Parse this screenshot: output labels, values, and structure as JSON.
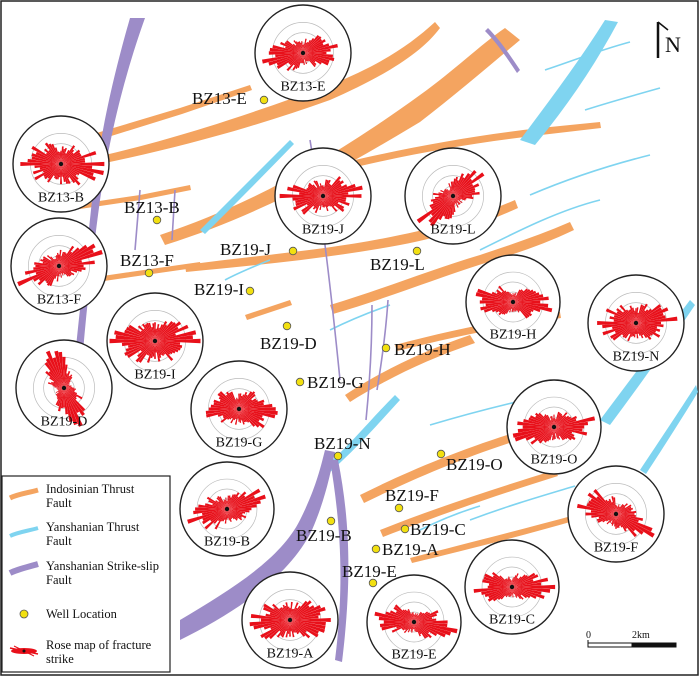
{
  "colors": {
    "indosinian": "#f4a460",
    "yanshanian_thrust": "#7fd4f0",
    "strike_slip": "#9d8cc8",
    "well": "#f2e010",
    "rose": "#e8101a",
    "frame": "#222222"
  },
  "north": {
    "label": "N",
    "icon": "north-arrow-icon"
  },
  "scale_bar": {
    "start": "0",
    "end": "2km"
  },
  "legend": [
    {
      "key": "indosinian",
      "lines": [
        "Indosinian Thrust",
        "Fault"
      ],
      "icon": "orange-fault-swatch-icon"
    },
    {
      "key": "yanshanian_thrust",
      "lines": [
        "Yanshanian Thrust",
        "Fault"
      ],
      "icon": "blue-fault-swatch-icon"
    },
    {
      "key": "strike_slip",
      "lines": [
        "Yanshanian Strike-slip",
        "Fault"
      ],
      "icon": "purple-fault-swatch-icon"
    },
    {
      "key": "well",
      "lines": [
        "Well Location"
      ],
      "icon": "well-dot-icon"
    },
    {
      "key": "rose",
      "lines": [
        "Rose map of fracture",
        "strike"
      ],
      "icon": "rose-swatch-icon"
    }
  ],
  "wells": [
    {
      "label": "BZ13-E"
    },
    {
      "label": "BZ13-B"
    },
    {
      "label": "BZ13-F"
    },
    {
      "label": "BZ19-J"
    },
    {
      "label": "BZ19-L"
    },
    {
      "label": "BZ19-I"
    },
    {
      "label": "BZ19-D"
    },
    {
      "label": "BZ19-H"
    },
    {
      "label": "BZ19-G"
    },
    {
      "label": "BZ19-N"
    },
    {
      "label": "BZ19-O"
    },
    {
      "label": "BZ19-F"
    },
    {
      "label": "BZ19-B"
    },
    {
      "label": "BZ19-C"
    },
    {
      "label": "BZ19-A"
    },
    {
      "label": "BZ19-E"
    }
  ],
  "roses": [
    {
      "label": "BZ13-E"
    },
    {
      "label": "BZ13-B"
    },
    {
      "label": "BZ19-J"
    },
    {
      "label": "BZ19-L"
    },
    {
      "label": "BZ13-F"
    },
    {
      "label": "BZ19-H"
    },
    {
      "label": "BZ19-N"
    },
    {
      "label": "BZ19-I"
    },
    {
      "label": "BZ19-D"
    },
    {
      "label": "BZ19-G"
    },
    {
      "label": "BZ19-O"
    },
    {
      "label": "BZ19-B"
    },
    {
      "label": "BZ19-F"
    },
    {
      "label": "BZ19-C"
    },
    {
      "label": "BZ19-A"
    },
    {
      "label": "BZ19-E"
    }
  ]
}
